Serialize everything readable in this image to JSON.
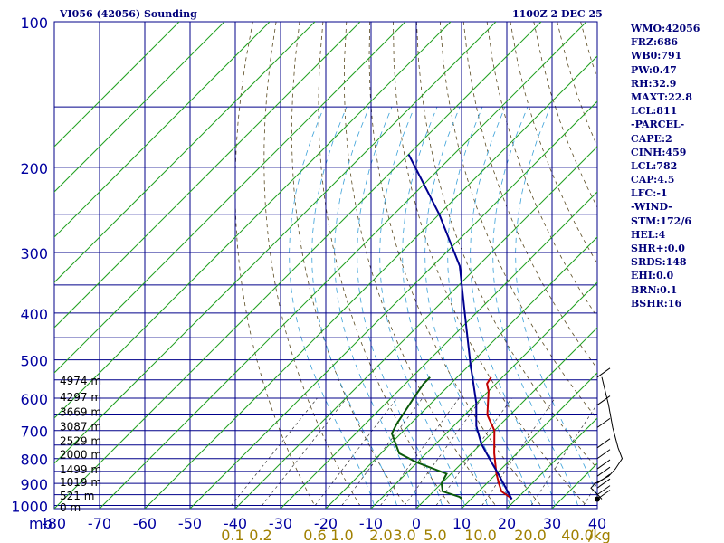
{
  "header": {
    "title": "VI056 (42056) Sounding",
    "time": "1100Z  2 DEC 25"
  },
  "panel": [
    "WMO:42056",
    "FRZ:686",
    "WB0:791",
    "PW:0.47",
    "RH:32.9",
    "MAXT:22.8",
    "LCL:811",
    "-PARCEL-",
    "CAPE:2",
    "CINH:459",
    "LCL:782",
    "CAP:4.5",
    "LFC:-1",
    "-WIND-",
    "STM:172/6",
    "HEL:4",
    "SHR+:0.0",
    "SRDS:148",
    "EHI:0.0",
    "BRN:0.1",
    "BSHR:16"
  ],
  "chart_data": {
    "type": "line",
    "xlabel": "",
    "ylabel": "mb",
    "x_ticks": [
      -80,
      -70,
      -60,
      -50,
      -40,
      -30,
      -20,
      -10,
      0,
      10,
      20,
      30,
      40
    ],
    "x_tick_labels": [
      "-80",
      "-70",
      "-60",
      "-50",
      "-40",
      "-30",
      "-20",
      "-10",
      "0",
      "10",
      "20",
      "30",
      "40"
    ],
    "xlim": [
      -80,
      40
    ],
    "p_ticks": [
      100,
      200,
      300,
      400,
      500,
      600,
      700,
      800,
      900,
      1000
    ],
    "p_levels": [
      100,
      150,
      200,
      250,
      300,
      350,
      400,
      450,
      500,
      550,
      600,
      650,
      700,
      750,
      800,
      850,
      900,
      950,
      1000
    ],
    "log_pressure": true,
    "mixing_ratio_labels": [
      "0.1",
      "0.2",
      "0.6",
      "1.0",
      "2.0",
      "3.0",
      "5.0",
      "10.0",
      "20.0",
      "40.0"
    ],
    "mixing_ratio_unit": "g/kg",
    "height_labels": [
      {
        "text": "4974 m",
        "p": 553
      },
      {
        "text": "4297 m",
        "p": 597
      },
      {
        "text": "3669 m",
        "p": 641
      },
      {
        "text": "3087 m",
        "p": 687
      },
      {
        "text": "2529 m",
        "p": 736
      },
      {
        "text": "2000 m",
        "p": 786
      },
      {
        "text": "1499 m",
        "p": 844
      },
      {
        "text": "1019 m",
        "p": 896
      },
      {
        "text": "521 m",
        "p": 955
      },
      {
        "text": "0 m",
        "p": 1010
      }
    ],
    "series": [
      {
        "color": "#c00000",
        "points": [
          [
            19,
            970
          ],
          [
            18,
            960
          ],
          [
            15,
            935
          ],
          [
            13,
            905
          ],
          [
            10,
            860
          ],
          [
            5,
            780
          ],
          [
            0,
            700
          ],
          [
            -5,
            650
          ],
          [
            -10,
            580
          ],
          [
            -12,
            560
          ],
          [
            -12.5,
            543
          ]
        ]
      },
      {
        "color": "#0a5a0a",
        "points": [
          [
            8,
            970
          ],
          [
            7,
            960
          ],
          [
            2,
            935
          ],
          [
            0,
            900
          ],
          [
            -1,
            860
          ],
          [
            -10,
            815
          ],
          [
            -16,
            780
          ],
          [
            -22,
            710
          ],
          [
            -23,
            680
          ],
          [
            -25,
            600
          ],
          [
            -26,
            560
          ],
          [
            -26,
            543
          ]
        ]
      },
      {
        "color": "#000090",
        "points": [
          [
            19,
            970
          ],
          [
            10,
            855
          ],
          [
            6,
            810
          ],
          [
            0,
            745
          ],
          [
            -5,
            685
          ],
          [
            -10,
            615
          ],
          [
            -15,
            560
          ],
          [
            -20,
            510
          ],
          [
            -30,
            420
          ],
          [
            -44,
            320
          ],
          [
            -60,
            250
          ],
          [
            -80,
            188
          ]
        ]
      }
    ],
    "wind_profile": [
      [
        0,
        543
      ],
      [
        5,
        620
      ],
      [
        8,
        690
      ],
      [
        12,
        760
      ],
      [
        15,
        800
      ],
      [
        10,
        840
      ],
      [
        5,
        870
      ],
      [
        -5,
        900
      ],
      [
        -8,
        920
      ],
      [
        -3,
        950
      ],
      [
        0,
        970
      ]
    ]
  }
}
